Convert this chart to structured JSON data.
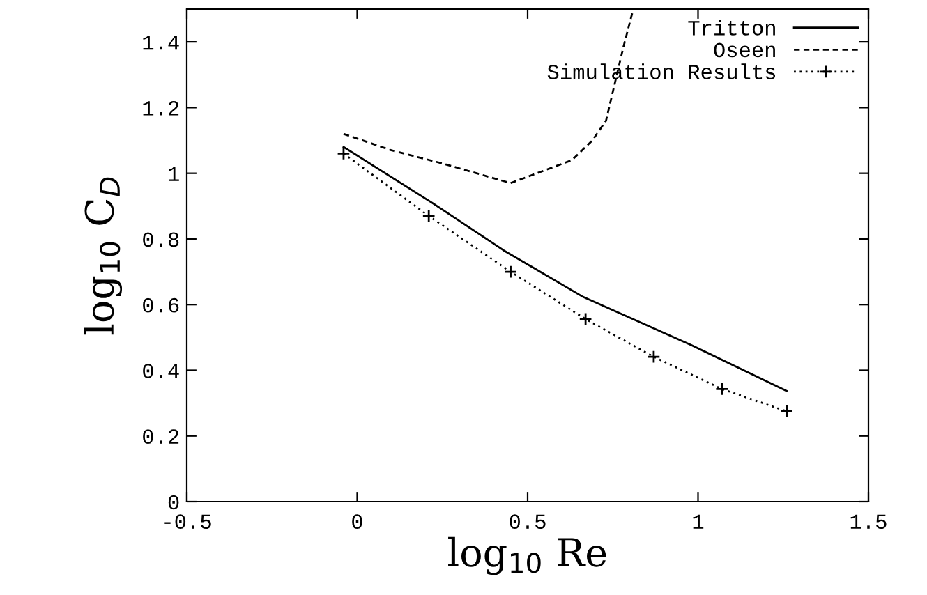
{
  "chart_data": {
    "type": "line",
    "xlabel": "log$_{10}$ Re",
    "ylabel": "log$_{10}$ C$_{D}$",
    "xlim": [
      -0.5,
      1.5
    ],
    "xticks": [
      -0.5,
      0,
      0.5,
      1,
      1.5
    ],
    "ylim": [
      0,
      1.5
    ],
    "yticks": [
      0,
      0.2,
      0.4,
      0.6,
      0.8,
      1,
      1.2,
      1.4
    ],
    "grid": false,
    "legend": "top right",
    "series": [
      {
        "name": "Tritton",
        "color": "#000000",
        "line_style": "solid",
        "marker": "none",
        "x": [
          -0.04,
          0.22,
          0.43,
          0.66,
          0.98,
          1.26
        ],
        "values": [
          1.08,
          0.91,
          0.765,
          0.625,
          0.477,
          0.337
        ]
      },
      {
        "name": "Oseen",
        "color": "#000000",
        "line_style": "dashed",
        "marker": "none",
        "x": [
          -0.04,
          0.1,
          0.25,
          0.45,
          0.63,
          0.69,
          0.73,
          0.78,
          0.81
        ],
        "values": [
          1.12,
          1.07,
          1.03,
          0.97,
          1.04,
          1.1,
          1.16,
          1.38,
          1.5
        ]
      },
      {
        "name": "Simulation Results",
        "color": "#000000",
        "line_style": "dotted",
        "marker": "cross",
        "x": [
          -0.04,
          0.21,
          0.45,
          0.67,
          0.87,
          1.07,
          1.26
        ],
        "values": [
          1.06,
          0.87,
          0.7,
          0.556,
          0.441,
          0.343,
          0.275
        ]
      }
    ]
  }
}
